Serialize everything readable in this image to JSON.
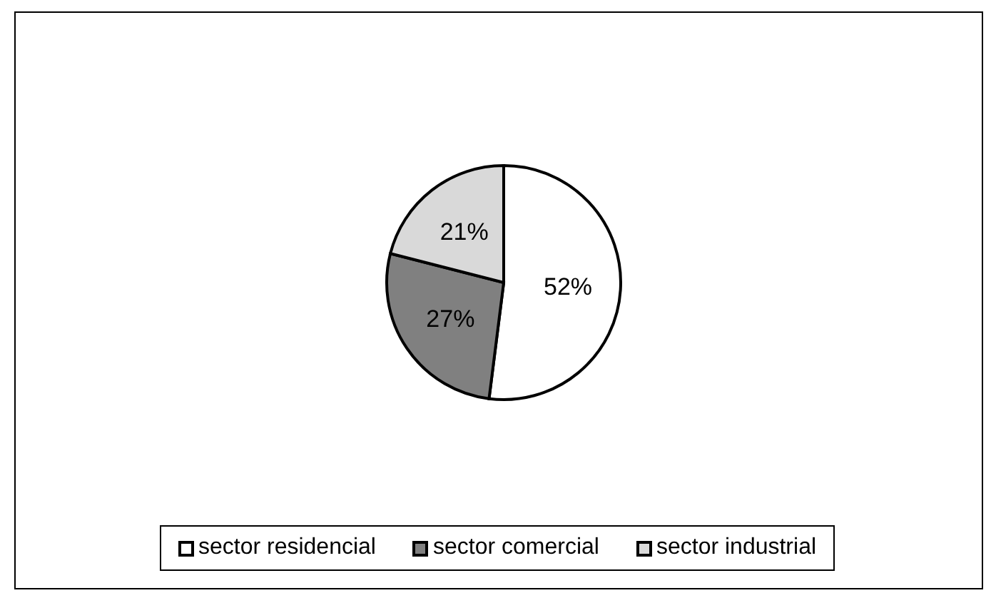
{
  "chart_data": {
    "type": "pie",
    "categories": [
      "sector residencial",
      "sector comercial",
      "sector industrial"
    ],
    "values": [
      52,
      27,
      21
    ],
    "colors": [
      "#ffffff",
      "#808080",
      "#d9d9d9"
    ],
    "value_labels": [
      "52%",
      "27%",
      "21%"
    ],
    "legend": "bottom"
  }
}
